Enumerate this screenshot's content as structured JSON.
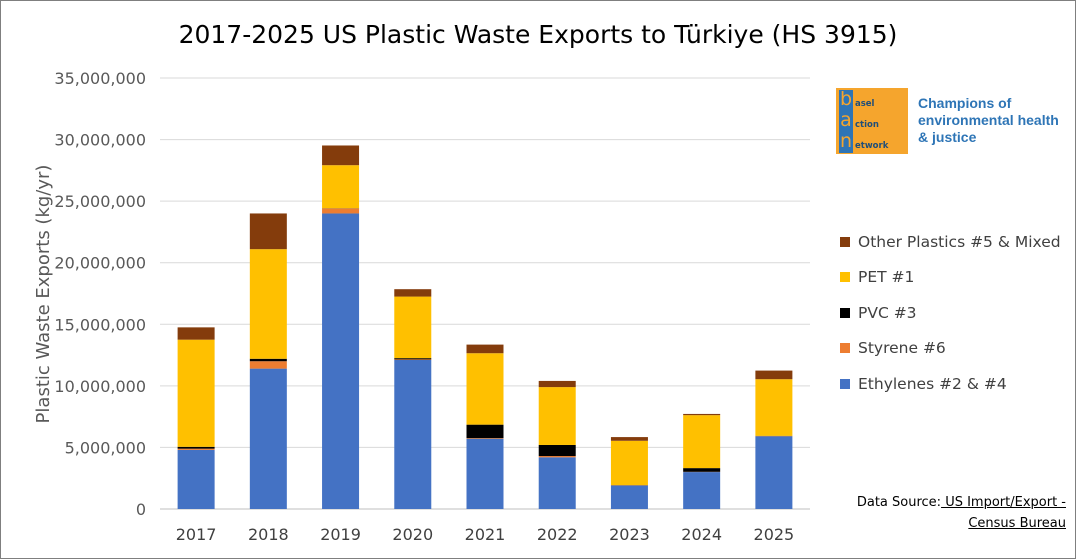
{
  "chart_data": {
    "type": "bar",
    "stacked": true,
    "title": "2017-2025 US Plastic Waste Exports to Türkiye (HS 3915)",
    "ylabel": "Plastic Waste Exports (kg/yr)",
    "xlabel": "",
    "ylim": [
      0,
      35000000
    ],
    "yticks": [
      0,
      5000000,
      10000000,
      15000000,
      20000000,
      25000000,
      30000000,
      35000000
    ],
    "ytick_labels": [
      "0",
      "5,000,000",
      "10,000,000",
      "15,000,000",
      "20,000,000",
      "25,000,000",
      "30,000,000",
      "35,000,000"
    ],
    "grid": true,
    "legend_position": "right",
    "categories": [
      "2017",
      "2018",
      "2019",
      "2020",
      "2021",
      "2022",
      "2023",
      "2024",
      "2025"
    ],
    "series": [
      {
        "name": "Ethylenes #2 & #4",
        "color": "#4472c4",
        "values": [
          4800000,
          11400000,
          24000000,
          12100000,
          5700000,
          4200000,
          1900000,
          3000000,
          5900000
        ]
      },
      {
        "name": "Styrene #6",
        "color": "#ed7d31",
        "values": [
          100000,
          600000,
          400000,
          50000,
          50000,
          100000,
          20000,
          20000,
          20000
        ]
      },
      {
        "name": "PVC #3",
        "color": "#000000",
        "values": [
          150000,
          200000,
          20000,
          100000,
          1100000,
          900000,
          20000,
          300000,
          20000
        ]
      },
      {
        "name": "PET #1",
        "color": "#ffc000",
        "values": [
          8700000,
          8900000,
          3500000,
          5000000,
          5800000,
          4700000,
          3600000,
          4300000,
          4600000
        ]
      },
      {
        "name": "Other Plastics #5 & Mixed",
        "color": "#843c0c",
        "values": [
          1000000,
          2900000,
          1600000,
          600000,
          700000,
          500000,
          300000,
          100000,
          700000
        ]
      }
    ]
  },
  "legend": [
    {
      "label": "Other Plastics #5 & Mixed",
      "color": "#843c0c"
    },
    {
      "label": "PET #1",
      "color": "#ffc000"
    },
    {
      "label": "PVC #3",
      "color": "#000000"
    },
    {
      "label": "Styrene #6",
      "color": "#ed7d31"
    },
    {
      "label": "Ethylenes #2 & #4",
      "color": "#4472c4"
    }
  ],
  "logo": {
    "letters": [
      "b",
      "a",
      "n"
    ],
    "words": [
      "asel",
      "ction",
      "etwork"
    ],
    "tagline": "Champions of environmental health & justice"
  },
  "source": {
    "prefix": "Data Source:",
    "link_text": " US Import/Export - Census Bureau"
  }
}
